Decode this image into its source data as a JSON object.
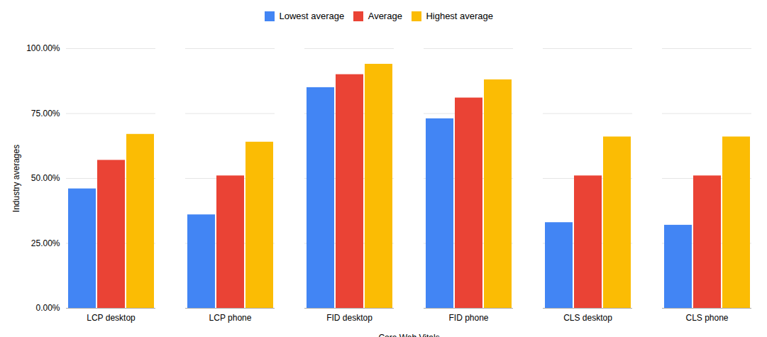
{
  "chart_data": {
    "type": "bar",
    "categories": [
      "LCP desktop",
      "LCP phone",
      "FID desktop",
      "FID phone",
      "CLS desktop",
      "CLS phone"
    ],
    "series": [
      {
        "name": "Lowest average",
        "color": "#4285f4",
        "values": [
          0.46,
          0.36,
          0.85,
          0.73,
          0.33,
          0.32
        ]
      },
      {
        "name": "Average",
        "color": "#ea4335",
        "values": [
          0.57,
          0.51,
          0.9,
          0.81,
          0.51,
          0.51
        ]
      },
      {
        "name": "Highest average",
        "color": "#fbbc04",
        "values": [
          0.67,
          0.64,
          0.94,
          0.88,
          0.66,
          0.66
        ]
      }
    ],
    "xlabel": "Core Web Vitals",
    "ylabel": "Industry averages",
    "ylim": [
      0,
      1.0
    ],
    "yticks": [
      {
        "value": 0,
        "label": "0.00%"
      },
      {
        "value": 0.25,
        "label": "25.00%"
      },
      {
        "value": 0.5,
        "label": "50.00%"
      },
      {
        "value": 0.75,
        "label": "75.00%"
      },
      {
        "value": 1.0,
        "label": "100.00%"
      }
    ],
    "grid": true,
    "legend": "top"
  }
}
